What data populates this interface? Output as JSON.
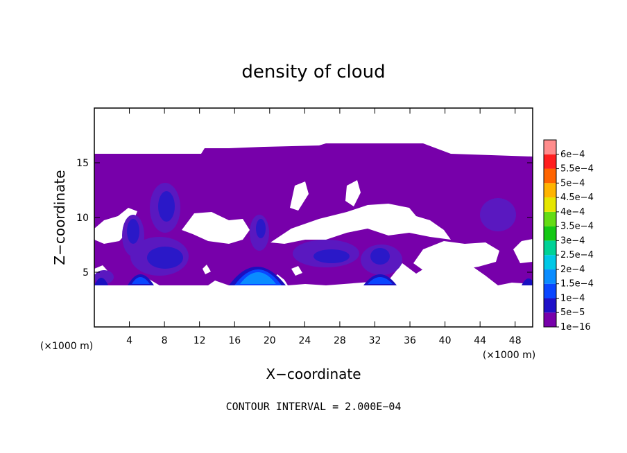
{
  "chart_data": {
    "type": "heatmap",
    "title": "density of cloud",
    "xlabel": "X−coordinate",
    "ylabel": "Z−coordinate",
    "x_unit_left": "(×1000 m)",
    "x_unit_right": "(×1000 m)",
    "xlim": [
      0,
      50
    ],
    "ylim": [
      0,
      20
    ],
    "x_ticks": [
      4,
      8,
      12,
      16,
      20,
      24,
      28,
      32,
      36,
      40,
      44,
      48
    ],
    "x_tick_labels": [
      "4",
      "8",
      "12",
      "16",
      "20",
      "24",
      "28",
      "32",
      "36",
      "40",
      "44",
      "48"
    ],
    "y_ticks": [
      5,
      10,
      15
    ],
    "y_tick_labels": [
      "5",
      "10",
      "15"
    ],
    "colorbar": {
      "levels": [
        "1e−16",
        "5e−5",
        "1e−4",
        "1.5e−4",
        "2e−4",
        "2.5e−4",
        "3e−4",
        "3.5e−4",
        "4e−4",
        "4.5e−4",
        "5e−4",
        "5.5e−4",
        "6e−4"
      ],
      "colors": [
        "#7700aa",
        "#1e10c8",
        "#0a46ff",
        "#0a8cff",
        "#00c8e6",
        "#00d296",
        "#14c814",
        "#64dc14",
        "#e6e600",
        "#ffb400",
        "#ff6400",
        "#ff1e1e",
        "#ff8c8c"
      ]
    },
    "cloud_layer_z": [
      4,
      15.5
    ],
    "cores": [
      {
        "x": 18.5,
        "z": 4.2,
        "level": "1.5e−4"
      },
      {
        "x": 5.5,
        "z": 4.3,
        "level": "1e−4"
      },
      {
        "x": 32.5,
        "z": 4.3,
        "level": "1e−4"
      },
      {
        "x": 4.5,
        "z": 9.0,
        "level": "5e−5"
      },
      {
        "x": 8.5,
        "z": 6.5,
        "level": "5e−5"
      },
      {
        "x": 8.0,
        "z": 11.5,
        "level": "5e−5"
      },
      {
        "x": 19.0,
        "z": 9.5,
        "level": "5e−5"
      },
      {
        "x": 26.5,
        "z": 7.5,
        "level": "5e−5"
      },
      {
        "x": 33.0,
        "z": 6.5,
        "level": "5e−5"
      }
    ],
    "grid": false
  },
  "footer": {
    "contour_interval": "CONTOUR INTERVAL = 2.000E−04"
  }
}
